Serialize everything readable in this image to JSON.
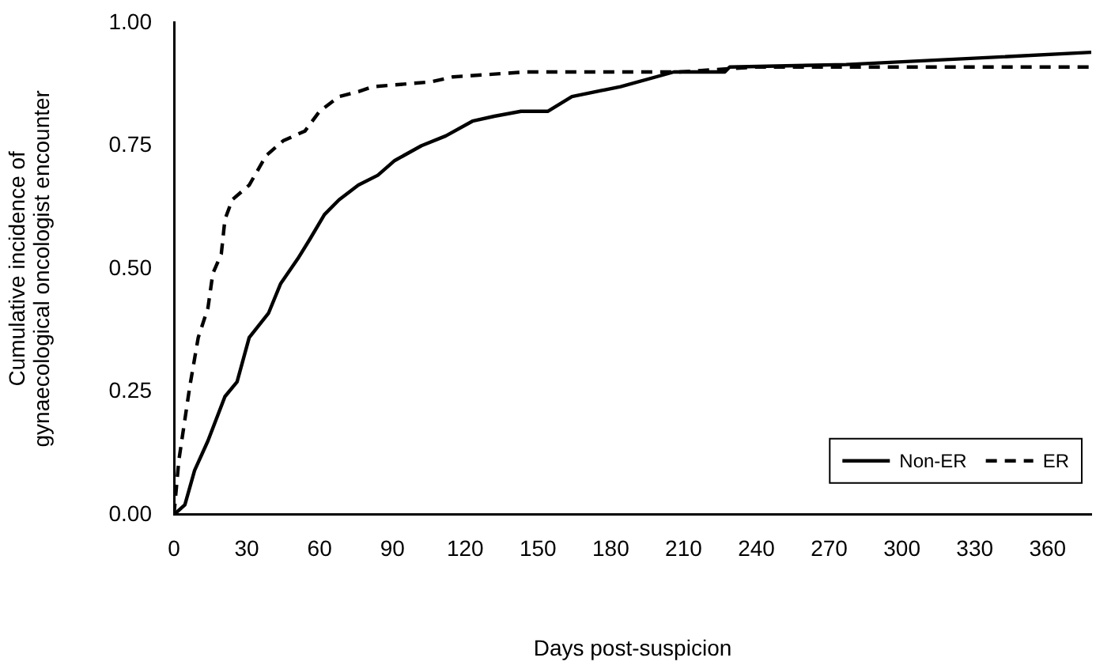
{
  "chart_data": {
    "type": "line",
    "xlabel": "Days post-suspicion",
    "ylabel": "Cumulative incidence of gynaecological oncologist encounter",
    "xlim": [
      0,
      378
    ],
    "xticks": [
      0,
      30,
      60,
      90,
      120,
      150,
      180,
      210,
      240,
      270,
      300,
      330,
      360
    ],
    "ylim": [
      0,
      1
    ],
    "yticks": [
      {
        "value": 0,
        "label": "0.00"
      },
      {
        "value": 0.25,
        "label": "0.25"
      },
      {
        "value": 0.5,
        "label": "0.50"
      },
      {
        "value": 0.75,
        "label": "0.75"
      },
      {
        "value": 1,
        "label": "1.00"
      }
    ],
    "grid": false,
    "legend": "bottom right",
    "marker": "none",
    "series": [
      {
        "name": "Non-ER",
        "color": "#000000",
        "line_style": "solid",
        "x": [
          0,
          4.5,
          8.5,
          14,
          21,
          26,
          31,
          39,
          44,
          51,
          56,
          62,
          68,
          76,
          84,
          91,
          102,
          112,
          123,
          132,
          143,
          154,
          164,
          184,
          206,
          227,
          229,
          277,
          338,
          378
        ],
        "values": [
          0,
          0.02,
          0.09,
          0.15,
          0.24,
          0.27,
          0.36,
          0.41,
          0.47,
          0.52,
          0.56,
          0.61,
          0.64,
          0.67,
          0.69,
          0.72,
          0.75,
          0.77,
          0.8,
          0.81,
          0.82,
          0.82,
          0.85,
          0.87,
          0.9,
          0.9,
          0.91,
          0.915,
          0.93,
          0.94
        ]
      },
      {
        "name": "ER",
        "color": "#000000",
        "line_style": "dashed",
        "x": [
          0,
          2,
          6.5,
          10,
          14,
          16,
          19.5,
          21,
          24,
          31,
          38,
          45,
          54,
          60,
          68,
          76,
          82,
          106,
          115,
          145,
          208,
          240,
          273,
          378
        ],
        "values": [
          0,
          0.11,
          0.26,
          0.36,
          0.42,
          0.49,
          0.53,
          0.6,
          0.64,
          0.67,
          0.73,
          0.76,
          0.78,
          0.82,
          0.85,
          0.86,
          0.87,
          0.88,
          0.89,
          0.9,
          0.9,
          0.91,
          0.91,
          0.91
        ]
      }
    ]
  }
}
